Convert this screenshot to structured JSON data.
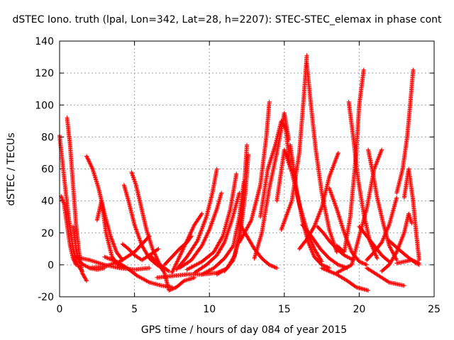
{
  "chart_data": {
    "type": "scatter",
    "title": "dSTEC Iono. truth (lpal, Lon=342, Lat=28, h=2207): STEC-STEC_elemax in phase cont",
    "xlabel": "GPS time / hours of day 084 of year 2015",
    "ylabel": "dSTEC  / TECUs",
    "xlim": [
      0,
      25
    ],
    "ylim": [
      -20,
      140
    ],
    "x_ticks": [
      0,
      5,
      10,
      15,
      20,
      25
    ],
    "y_ticks": [
      -20,
      0,
      20,
      40,
      60,
      80,
      100,
      120,
      140
    ],
    "x_tick_labels": [
      "0",
      "5",
      "10",
      "15",
      "20",
      "25"
    ],
    "y_tick_labels": [
      "-20",
      "0",
      "20",
      "40",
      "60",
      "80",
      "100",
      "120",
      "140"
    ],
    "grid": true,
    "marker": "+",
    "color": "#ff0000",
    "series": [
      {
        "x": [
          0.0,
          0.3,
          0.6,
          0.9,
          1.2,
          1.5
        ],
        "y": [
          81,
          55,
          30,
          10,
          0,
          -4
        ]
      },
      {
        "x": [
          0.1,
          0.3,
          0.5,
          0.7,
          0.9,
          1.1
        ],
        "y": [
          43,
          38,
          25,
          12,
          4,
          0
        ]
      },
      {
        "x": [
          0.5,
          0.7,
          0.9,
          1.1,
          1.3,
          1.5,
          1.8
        ],
        "y": [
          92,
          75,
          50,
          25,
          8,
          -5,
          -10
        ]
      },
      {
        "x": [
          0.9,
          1.1,
          1.3,
          1.6,
          2.0,
          2.5,
          3.0
        ],
        "y": [
          24,
          10,
          2,
          0,
          -2,
          -3,
          -2
        ]
      },
      {
        "x": [
          1.8,
          2.2,
          2.6,
          3.0,
          3.4,
          3.8,
          4.2
        ],
        "y": [
          68,
          60,
          48,
          32,
          18,
          8,
          3
        ]
      },
      {
        "x": [
          2.5,
          2.8,
          3.1,
          3.5,
          4.0,
          4.5
        ],
        "y": [
          28,
          40,
          20,
          5,
          -1,
          -2
        ]
      },
      {
        "x": [
          4.3,
          4.6,
          5.0,
          5.5,
          6.0,
          6.5,
          7.0
        ],
        "y": [
          50,
          40,
          25,
          12,
          4,
          0,
          -3
        ]
      },
      {
        "x": [
          4.8,
          5.1,
          5.4,
          5.8,
          6.2,
          6.7,
          7.3
        ],
        "y": [
          58,
          50,
          38,
          22,
          10,
          0,
          -4
        ]
      },
      {
        "x": [
          2.0,
          3.0,
          4.0,
          5.0,
          5.6,
          6.0
        ],
        "y": [
          -2,
          -1,
          2,
          8,
          14,
          18
        ]
      },
      {
        "x": [
          1.0,
          2.0,
          3.0,
          4.0,
          5.0,
          6.0
        ],
        "y": [
          5,
          3,
          0,
          -2,
          -3,
          -2
        ]
      },
      {
        "x": [
          3.0,
          3.8,
          4.5,
          5.2,
          6.0,
          6.8,
          7.5
        ],
        "y": [
          5,
          2,
          -2,
          -7,
          -11,
          -13,
          -14
        ]
      },
      {
        "x": [
          4.2,
          4.6,
          5.0,
          5.5,
          6.0,
          6.6
        ],
        "y": [
          13,
          10,
          6,
          3,
          6,
          10
        ]
      },
      {
        "x": [
          6.0,
          6.5,
          7.0,
          7.3,
          7.8,
          8.3,
          9.0
        ],
        "y": [
          6,
          2,
          -5,
          -16,
          -14,
          -10,
          -8
        ]
      },
      {
        "x": [
          7.0,
          7.5,
          8.0,
          8.5,
          8.8
        ],
        "y": [
          0,
          5,
          10,
          14,
          18
        ]
      },
      {
        "x": [
          7.5,
          8.0,
          8.5,
          9.0,
          9.5
        ],
        "y": [
          -5,
          5,
          15,
          25,
          32
        ]
      },
      {
        "x": [
          7.8,
          8.5,
          9.2,
          9.8,
          10.2,
          10.5
        ],
        "y": [
          -3,
          5,
          15,
          30,
          45,
          60
        ]
      },
      {
        "x": [
          8.0,
          8.8,
          9.5,
          10.0,
          10.5,
          10.8
        ],
        "y": [
          -2,
          3,
          12,
          22,
          35,
          45
        ]
      },
      {
        "x": [
          8.5,
          9.5,
          10.3,
          10.9,
          11.4,
          11.8
        ],
        "y": [
          -3,
          2,
          8,
          18,
          35,
          57
        ]
      },
      {
        "x": [
          9.0,
          9.8,
          10.5,
          11.0,
          11.5,
          12.0
        ],
        "y": [
          -5,
          0,
          6,
          14,
          28,
          45
        ]
      },
      {
        "x": [
          9.5,
          10.3,
          11.0,
          11.6,
          12.0,
          12.3
        ],
        "y": [
          -6,
          -2,
          4,
          12,
          30,
          52
        ]
      },
      {
        "x": [
          10.5,
          11.2,
          11.7,
          12.1,
          12.4,
          12.6
        ],
        "y": [
          -6,
          -2,
          6,
          22,
          45,
          69
        ]
      },
      {
        "x": [
          11.0,
          11.6,
          12.0,
          12.3,
          12.5
        ],
        "y": [
          -4,
          3,
          18,
          45,
          75
        ]
      },
      {
        "x": [
          6.5,
          7.5,
          8.5,
          9.5,
          10.5,
          11.0
        ],
        "y": [
          -8,
          -7,
          -6,
          -6,
          -5,
          -3
        ]
      },
      {
        "x": [
          12.0,
          12.5,
          13.0,
          13.5,
          14.0,
          14.5
        ],
        "y": [
          26,
          18,
          10,
          4,
          0,
          -2
        ]
      },
      {
        "x": [
          12.0,
          12.8,
          13.4,
          13.8,
          14.0
        ],
        "y": [
          14,
          28,
          50,
          80,
          102
        ]
      },
      {
        "x": [
          13.0,
          13.5,
          14.0,
          14.5,
          15.0,
          15.3
        ],
        "y": [
          4,
          20,
          48,
          70,
          95,
          78
        ]
      },
      {
        "x": [
          13.4,
          13.9,
          14.4,
          14.8,
          15.1,
          15.4
        ],
        "y": [
          30,
          60,
          75,
          90,
          85,
          60
        ]
      },
      {
        "x": [
          14.5,
          15.0,
          15.5,
          16.0,
          16.5,
          17.0,
          17.5
        ],
        "y": [
          40,
          72,
          58,
          38,
          22,
          10,
          2
        ]
      },
      {
        "x": [
          15.4,
          15.8,
          16.2,
          16.6,
          17.0,
          17.5,
          18.0
        ],
        "y": [
          75,
          48,
          28,
          14,
          5,
          0,
          -2
        ]
      },
      {
        "x": [
          14.8,
          15.5,
          16.0,
          16.3,
          16.5
        ],
        "y": [
          22,
          40,
          70,
          105,
          131
        ]
      },
      {
        "x": [
          16.5,
          16.8,
          17.1,
          17.5,
          18.0,
          18.5
        ],
        "y": [
          126,
          98,
          72,
          45,
          22,
          8
        ]
      },
      {
        "x": [
          16.0,
          16.5,
          17.0,
          17.5,
          18.0,
          18.6
        ],
        "y": [
          10,
          16,
          24,
          36,
          55,
          70
        ]
      },
      {
        "x": [
          16.2,
          16.8,
          17.4,
          18.0,
          18.6,
          19.2
        ],
        "y": [
          25,
          18,
          10,
          4,
          0,
          -2
        ]
      },
      {
        "x": [
          17.2,
          17.6,
          18.0,
          18.5,
          19.0,
          19.6
        ],
        "y": [
          24,
          20,
          15,
          10,
          6,
          3
        ]
      },
      {
        "x": [
          18.0,
          18.5,
          19.0,
          19.5,
          20.0,
          20.5
        ],
        "y": [
          48,
          35,
          20,
          8,
          2,
          0
        ]
      },
      {
        "x": [
          18.5,
          19.0,
          19.4,
          19.8,
          20.0,
          20.3
        ],
        "y": [
          12,
          8,
          30,
          70,
          100,
          122
        ]
      },
      {
        "x": [
          19.3,
          19.6,
          19.9,
          20.3,
          20.7,
          21.2
        ],
        "y": [
          102,
          80,
          55,
          32,
          15,
          4
        ]
      },
      {
        "x": [
          20.6,
          20.9,
          21.2,
          21.6,
          22.0,
          22.5
        ],
        "y": [
          72,
          58,
          42,
          26,
          12,
          3
        ]
      },
      {
        "x": [
          18.5,
          19.5,
          20.0,
          20.5,
          21.0,
          21.5
        ],
        "y": [
          -5,
          0,
          18,
          35,
          60,
          72
        ]
      },
      {
        "x": [
          20.5,
          21.0,
          21.5,
          22.0,
          22.5
        ],
        "y": [
          3,
          8,
          14,
          25,
          42
        ]
      },
      {
        "x": [
          20.0,
          20.5,
          21.0,
          21.5,
          22.0
        ],
        "y": [
          24,
          18,
          12,
          6,
          2
        ]
      },
      {
        "x": [
          17.5,
          18.5,
          19.2,
          19.8,
          20.2,
          20.6
        ],
        "y": [
          -2,
          -6,
          -10,
          -14,
          -15,
          -16
        ]
      },
      {
        "x": [
          20.5,
          21.0,
          21.5,
          22.0,
          22.5,
          23.0
        ],
        "y": [
          -2,
          -5,
          -8,
          -11,
          -12,
          -13
        ]
      },
      {
        "x": [
          22.5,
          22.9,
          23.2,
          23.4,
          23.6
        ],
        "y": [
          45,
          60,
          80,
          100,
          122
        ]
      },
      {
        "x": [
          23.0,
          23.3,
          23.6,
          23.8,
          24.0
        ],
        "y": [
          42,
          60,
          40,
          20,
          3
        ]
      },
      {
        "x": [
          21.5,
          22.0,
          22.5,
          23.0,
          23.3,
          23.5
        ],
        "y": [
          -4,
          0,
          8,
          20,
          32,
          26
        ]
      },
      {
        "x": [
          22.0,
          22.6,
          23.1,
          23.5,
          23.8,
          24.0
        ],
        "y": [
          15,
          10,
          6,
          3,
          1,
          0
        ]
      },
      {
        "x": [
          22.5,
          23.0,
          23.5,
          24.0
        ],
        "y": [
          1,
          2,
          3,
          1
        ]
      }
    ]
  }
}
